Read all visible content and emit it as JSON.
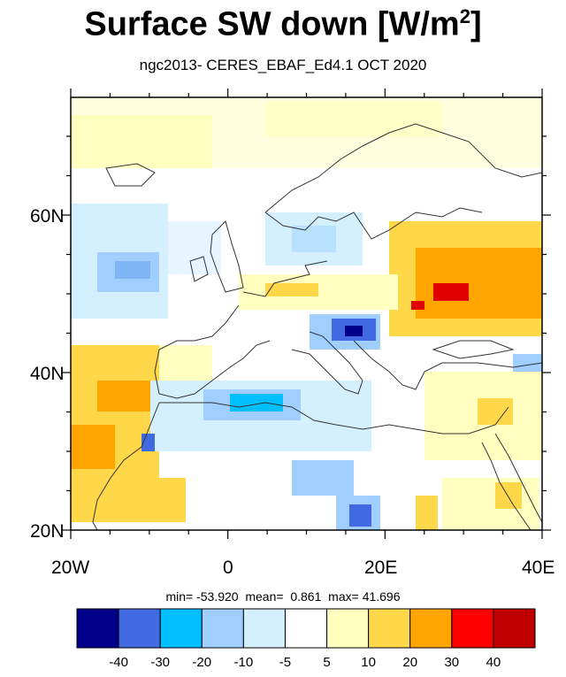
{
  "title": "Surface SW down [W/m",
  "title_sup": "2",
  "title_end": "]",
  "subtitle": "ngc2013- CERES_EBAF_Ed4.1  OCT 2020",
  "lat_labels": [
    "60N",
    "40N",
    "20N"
  ],
  "lon_labels": [
    "20W",
    "0",
    "20E",
    "40E"
  ],
  "stats": {
    "min_label": "min=",
    "min": "-53.920",
    "mean_label": "mean=",
    "mean": "0.861",
    "max_label": "max=",
    "max": "41.696"
  },
  "colorbar": {
    "colors": [
      "#00008b",
      "#4169e1",
      "#00bfff",
      "#a0cfff",
      "#d4f0ff",
      "#ffffff",
      "#ffffc0",
      "#ffd84a",
      "#ffa500",
      "#ff0000",
      "#c00000"
    ],
    "labels": [
      "-40",
      "-30",
      "-20",
      "-10",
      "-5",
      "5",
      "10",
      "20",
      "30",
      "40"
    ]
  }
}
